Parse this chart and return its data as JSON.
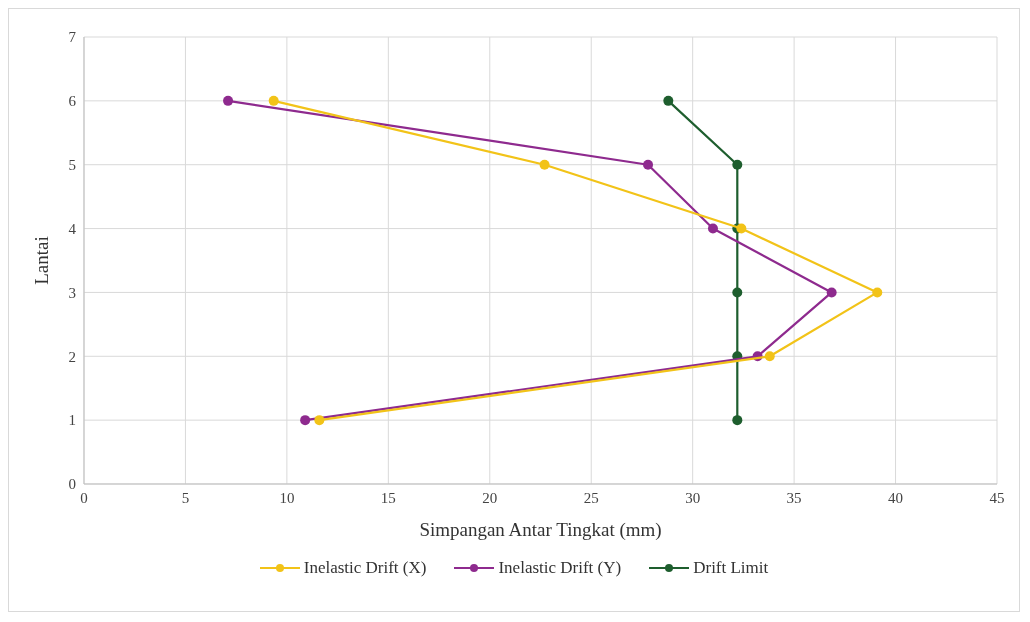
{
  "chart_data": {
    "type": "line",
    "xlabel": "Simpangan Antar Tingkat (mm)",
    "ylabel": "Lantai",
    "xlim": [
      0,
      45
    ],
    "xticks": [
      0,
      5,
      10,
      15,
      20,
      25,
      30,
      35,
      40,
      45
    ],
    "ylim": [
      0,
      7
    ],
    "yticks": [
      0,
      1,
      2,
      3,
      4,
      5,
      6,
      7
    ],
    "grid": true,
    "legend": "bottom",
    "marker": "circle",
    "line_style": "solid",
    "series": [
      {
        "name": "Inelastic Drift (X)",
        "color": "#f2c318",
        "x": [
          11.6,
          33.8,
          39.1,
          32.4,
          22.7,
          9.35
        ],
        "values": [
          1,
          2,
          3,
          4,
          5,
          6
        ]
      },
      {
        "name": "Inelastic Drift (Y)",
        "color": "#8e2a8e",
        "x": [
          10.9,
          33.2,
          36.85,
          31.0,
          27.8,
          7.1
        ],
        "values": [
          1,
          2,
          3,
          4,
          5,
          6
        ]
      },
      {
        "name": "Drift Limit",
        "color": "#1e5e2e",
        "x": [
          32.2,
          32.2,
          32.2,
          32.2,
          32.2,
          28.8
        ],
        "values": [
          1,
          2,
          3,
          4,
          5,
          6
        ]
      }
    ]
  }
}
